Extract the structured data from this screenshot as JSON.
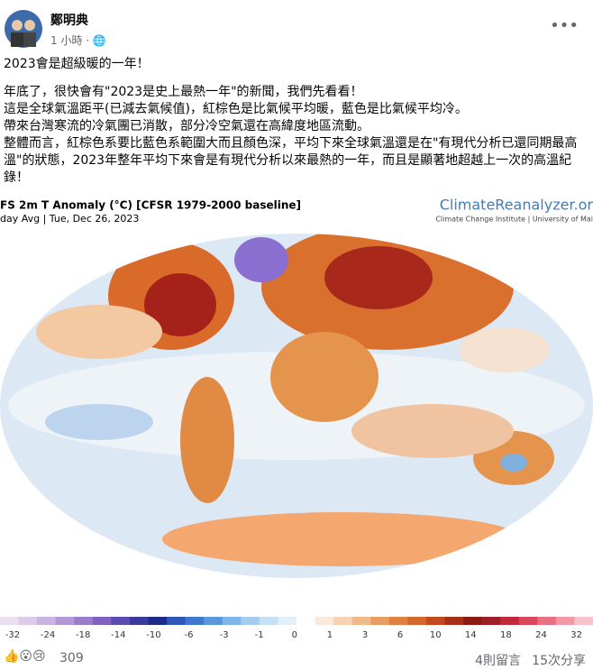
{
  "post": {
    "author": "鄭明典",
    "time": "1 小時 ·",
    "lines": [
      "2023會是超級暖的一年！",
      "年底了，很快會有\"2023是史上最熱一年\"的新聞，我們先看看！",
      "這是全球氣溫距平(已減去氣候值)，紅棕色是比氣候平均暖，藍色是比氣候平均冷。",
      "帶來台灣寒流的冷氣團已消散，部分冷空氣還在高緯度地區流動。",
      "整體而言，紅棕色系要比藍色系範圍大而且顏色深，平均下來全球氣溫還是在\"有現代分析已還同期最高溫\"的狀態，2023年整年平均下來會是有現代分析以來最熱的一年，而且是顯著地超越上一次的高溫紀錄！"
    ]
  },
  "map": {
    "title": "FS 2m T Anomaly (°C) [CFSR 1979-2000 baseline]",
    "subtitle": "day Avg | Tue, Dec 26, 2023",
    "brand": "ClimateReanalyzer.or",
    "brand_sub": "Climate Change Institute | University of Mai",
    "colorbar_labels": [
      "-32",
      "-24",
      "-18",
      "-14",
      "-10",
      "-6",
      "-3",
      "-1",
      "0",
      "1",
      "3",
      "6",
      "10",
      "14",
      "18",
      "24",
      "32"
    ]
  },
  "footer": {
    "reactions": "309",
    "comments": "4則留言",
    "shares": "15次分享"
  }
}
